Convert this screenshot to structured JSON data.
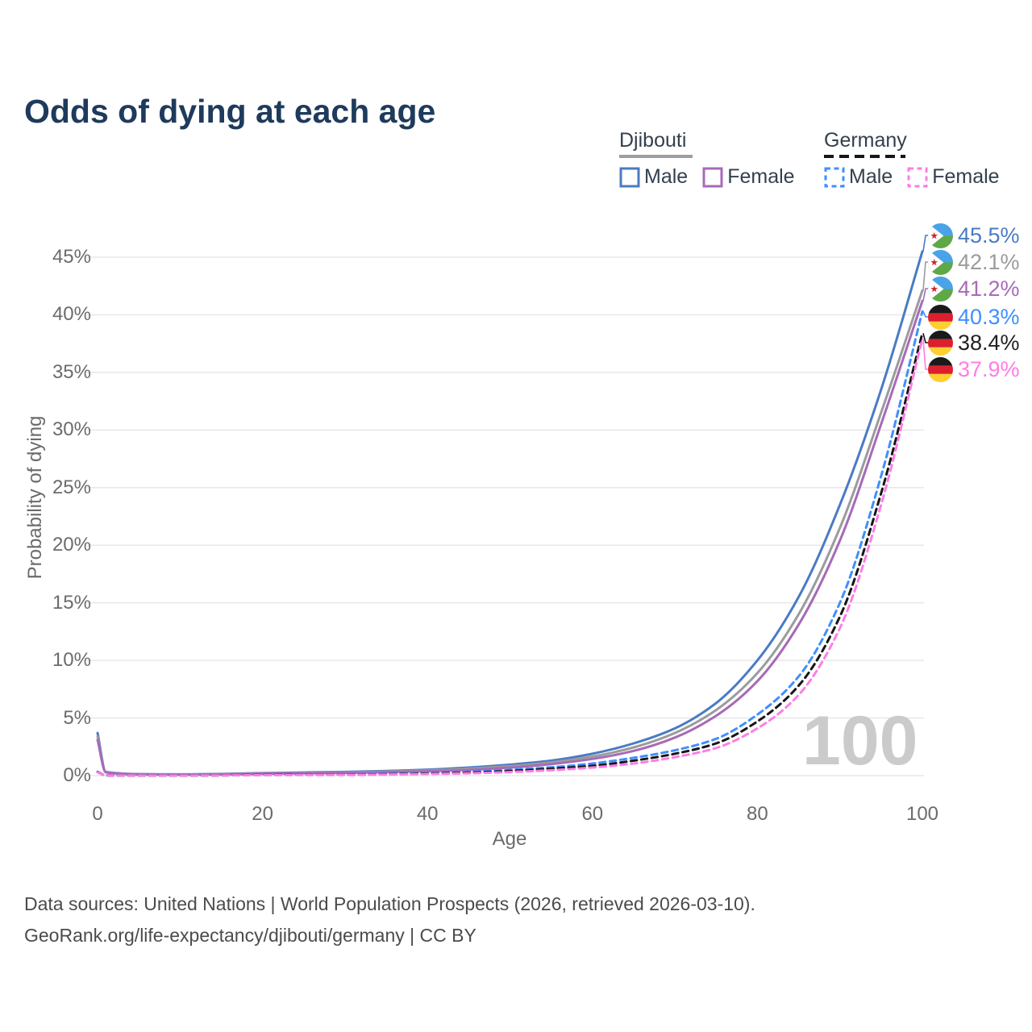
{
  "header": {
    "title": "Odds of dying at each age"
  },
  "legend": {
    "groups": [
      {
        "label": "Djibouti",
        "line_style": "solid",
        "underline_color": "#9e9e9e",
        "items": [
          {
            "label": "Male",
            "color": "#4a7bc4",
            "dashed": false
          },
          {
            "label": "Female",
            "color": "#a76ab8",
            "dashed": false
          }
        ]
      },
      {
        "label": "Germany",
        "line_style": "dashed",
        "underline_color": "#161616",
        "items": [
          {
            "label": "Male",
            "color": "#3f8fff",
            "dashed": true
          },
          {
            "label": "Female",
            "color": "#ff7ce6",
            "dashed": true
          }
        ]
      }
    ]
  },
  "chart_data": {
    "type": "line",
    "title": "Odds of dying at each age",
    "xlabel": "Age",
    "ylabel": "Probability of dying",
    "xlim": [
      0,
      100
    ],
    "ylim": [
      0,
      47
    ],
    "x_ticks": [
      0,
      20,
      40,
      60,
      80,
      100
    ],
    "y_ticks": [
      0,
      5,
      10,
      15,
      20,
      25,
      30,
      35,
      40,
      45
    ],
    "y_tick_suffix": "%",
    "grid": "horizontal",
    "legend_position": "top-right",
    "watermark": "100",
    "x": [
      0,
      1,
      5,
      10,
      15,
      20,
      25,
      30,
      35,
      40,
      45,
      50,
      55,
      60,
      65,
      70,
      75,
      80,
      85,
      90,
      95,
      100
    ],
    "series": [
      {
        "name": "Djibouti Male",
        "country": "Djibouti",
        "sex": "Male",
        "color": "#4a7bc4",
        "dashed": false,
        "flag": "djibouti",
        "end_label": "45.5%",
        "label_color": "#4a7bc4",
        "values": [
          3.7,
          0.32,
          0.13,
          0.11,
          0.15,
          0.22,
          0.27,
          0.32,
          0.4,
          0.52,
          0.7,
          0.95,
          1.3,
          1.9,
          2.8,
          4.1,
          6.3,
          10.0,
          15.5,
          23.5,
          33.5,
          45.5
        ]
      },
      {
        "name": "Djibouti",
        "country": "Djibouti",
        "sex": "Both",
        "color": "#9b9b9b",
        "dashed": false,
        "flag": "djibouti",
        "end_label": "42.1%",
        "label_color": "#9b9b9b",
        "values": [
          3.4,
          0.3,
          0.12,
          0.1,
          0.13,
          0.19,
          0.23,
          0.28,
          0.35,
          0.45,
          0.6,
          0.82,
          1.15,
          1.65,
          2.45,
          3.7,
          5.7,
          8.9,
          14.0,
          21.5,
          31.5,
          42.1
        ]
      },
      {
        "name": "Djibouti Female",
        "country": "Djibouti",
        "sex": "Female",
        "color": "#a76ab8",
        "dashed": false,
        "flag": "djibouti",
        "end_label": "41.2%",
        "label_color": "#a76ab8",
        "values": [
          3.1,
          0.28,
          0.11,
          0.09,
          0.11,
          0.16,
          0.2,
          0.24,
          0.3,
          0.38,
          0.5,
          0.7,
          1.0,
          1.45,
          2.15,
          3.3,
          5.2,
          8.2,
          13.1,
          20.4,
          30.5,
          41.2
        ]
      },
      {
        "name": "Germany Male",
        "country": "Germany",
        "sex": "Male",
        "color": "#3f8fff",
        "dashed": true,
        "flag": "germany",
        "end_label": "40.3%",
        "label_color": "#3f8fff",
        "values": [
          0.33,
          0.02,
          0.01,
          0.01,
          0.03,
          0.08,
          0.09,
          0.11,
          0.15,
          0.22,
          0.33,
          0.5,
          0.72,
          1.05,
          1.55,
          2.2,
          3.2,
          5.3,
          8.6,
          15.0,
          26.0,
          40.3
        ]
      },
      {
        "name": "Germany",
        "country": "Germany",
        "sex": "Both",
        "color": "#161616",
        "dashed": true,
        "flag": "germany",
        "end_label": "38.4%",
        "label_color": "#222222",
        "values": [
          0.31,
          0.02,
          0.01,
          0.01,
          0.02,
          0.06,
          0.07,
          0.08,
          0.12,
          0.18,
          0.26,
          0.4,
          0.6,
          0.85,
          1.3,
          1.9,
          2.8,
          4.7,
          7.8,
          13.8,
          24.5,
          38.4
        ]
      },
      {
        "name": "Germany Female",
        "country": "Germany",
        "sex": "Female",
        "color": "#ff7ce6",
        "dashed": true,
        "flag": "germany",
        "end_label": "37.9%",
        "label_color": "#ff7ce6",
        "values": [
          0.29,
          0.02,
          0.01,
          0.01,
          0.02,
          0.04,
          0.05,
          0.06,
          0.09,
          0.14,
          0.2,
          0.31,
          0.47,
          0.7,
          1.05,
          1.6,
          2.4,
          4.1,
          7.0,
          12.8,
          23.5,
          37.9
        ]
      }
    ]
  },
  "footer": {
    "line1": "Data sources: United Nations | World Population Prospects (2026, retrieved 2026-03-10).",
    "line2": "GeoRank.org/life-expectancy/djibouti/germany | CC BY"
  }
}
